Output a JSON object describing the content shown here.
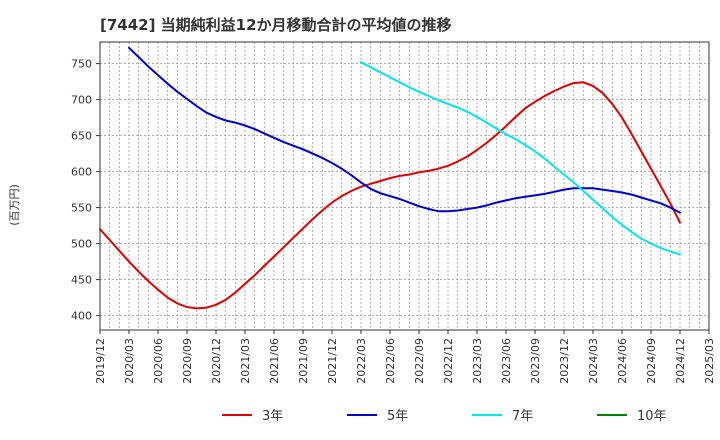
{
  "chart_data": {
    "type": "line",
    "title": "[7442]  当期純利益12か月移動合計の平均値の推移",
    "ylabel": "(百万円)",
    "xlabel": "",
    "ylim": [
      380,
      780
    ],
    "yticks": [
      400,
      450,
      500,
      550,
      600,
      650,
      700,
      750
    ],
    "xticks": [
      "2019/12",
      "2020/03",
      "2020/06",
      "2020/09",
      "2020/12",
      "2021/03",
      "2021/06",
      "2021/09",
      "2021/12",
      "2022/03",
      "2022/06",
      "2022/09",
      "2022/12",
      "2023/03",
      "2023/06",
      "2023/09",
      "2023/12",
      "2024/03",
      "2024/06",
      "2024/09",
      "2024/12",
      "2025/03"
    ],
    "grid": true,
    "legend_position": "bottom",
    "series": [
      {
        "name": "3年",
        "color": "#dd0000",
        "x": [
          "2019/12",
          "2020/01",
          "2020/02",
          "2020/03",
          "2020/04",
          "2020/05",
          "2020/06",
          "2020/07",
          "2020/08",
          "2020/09",
          "2020/10",
          "2020/11",
          "2020/12",
          "2021/01",
          "2021/02",
          "2021/03",
          "2021/04",
          "2021/05",
          "2021/06",
          "2021/07",
          "2021/08",
          "2021/09",
          "2021/10",
          "2021/11",
          "2021/12",
          "2022/01",
          "2022/02",
          "2022/03",
          "2022/04",
          "2022/05",
          "2022/06",
          "2022/07",
          "2022/08",
          "2022/09",
          "2022/10",
          "2022/11",
          "2022/12",
          "2023/01",
          "2023/02",
          "2023/03",
          "2023/04",
          "2023/05",
          "2023/06",
          "2023/07",
          "2023/08",
          "2023/09",
          "2023/10",
          "2023/11",
          "2023/12",
          "2024/01",
          "2024/02",
          "2024/03",
          "2024/04",
          "2024/05",
          "2024/06",
          "2024/07",
          "2024/08",
          "2024/09",
          "2024/10",
          "2024/11",
          "2024/12"
        ],
        "values": [
          520,
          505,
          490,
          475,
          461,
          448,
          436,
          425,
          417,
          412,
          410,
          411,
          415,
          422,
          432,
          444,
          456,
          469,
          482,
          495,
          508,
          521,
          534,
          546,
          557,
          566,
          573,
          579,
          583,
          587,
          591,
          594,
          596,
          599,
          601,
          604,
          608,
          614,
          621,
          630,
          640,
          651,
          663,
          676,
          688,
          697,
          705,
          712,
          718,
          723,
          724,
          719,
          709,
          694,
          675,
          652,
          628,
          604,
          580,
          556,
          529
        ]
      },
      {
        "name": "5年",
        "color": "#0000cc",
        "x": [
          "2020/03",
          "2020/04",
          "2020/05",
          "2020/06",
          "2020/07",
          "2020/08",
          "2020/09",
          "2020/10",
          "2020/11",
          "2020/12",
          "2021/01",
          "2021/02",
          "2021/03",
          "2021/04",
          "2021/05",
          "2021/06",
          "2021/07",
          "2021/08",
          "2021/09",
          "2021/10",
          "2021/11",
          "2021/12",
          "2022/01",
          "2022/02",
          "2022/03",
          "2022/04",
          "2022/05",
          "2022/06",
          "2022/07",
          "2022/08",
          "2022/09",
          "2022/10",
          "2022/11",
          "2022/12",
          "2023/01",
          "2023/02",
          "2023/03",
          "2023/04",
          "2023/05",
          "2023/06",
          "2023/07",
          "2023/08",
          "2023/09",
          "2023/10",
          "2023/11",
          "2023/12",
          "2024/01",
          "2024/02",
          "2024/03",
          "2024/04",
          "2024/05",
          "2024/06",
          "2024/07",
          "2024/08",
          "2024/09",
          "2024/10",
          "2024/11",
          "2024/12"
        ],
        "values": [
          772,
          759,
          746,
          734,
          722,
          711,
          701,
          691,
          682,
          676,
          671,
          668,
          664,
          659,
          653,
          647,
          641,
          636,
          631,
          625,
          619,
          612,
          604,
          595,
          585,
          576,
          570,
          566,
          562,
          557,
          552,
          548,
          545,
          545,
          546,
          548,
          550,
          553,
          557,
          560,
          563,
          565,
          567,
          569,
          572,
          575,
          577,
          577,
          577,
          575,
          573,
          571,
          568,
          564,
          560,
          556,
          550,
          543
        ]
      },
      {
        "name": "7年",
        "color": "#00e6e6",
        "x": [
          "2022/03",
          "2022/04",
          "2022/05",
          "2022/06",
          "2022/07",
          "2022/08",
          "2022/09",
          "2022/10",
          "2022/11",
          "2022/12",
          "2023/01",
          "2023/02",
          "2023/03",
          "2023/04",
          "2023/05",
          "2023/06",
          "2023/07",
          "2023/08",
          "2023/09",
          "2023/10",
          "2023/11",
          "2023/12",
          "2024/01",
          "2024/02",
          "2024/03",
          "2024/04",
          "2024/05",
          "2024/06",
          "2024/07",
          "2024/08",
          "2024/09",
          "2024/10",
          "2024/11",
          "2024/12"
        ],
        "values": [
          752,
          745,
          738,
          731,
          724,
          717,
          711,
          705,
          699,
          694,
          689,
          683,
          676,
          668,
          660,
          652,
          645,
          637,
          628,
          618,
          607,
          596,
          585,
          573,
          561,
          549,
          537,
          526,
          516,
          507,
          500,
          494,
          489,
          485
        ]
      },
      {
        "name": "10年",
        "color": "#008000",
        "x": [],
        "values": []
      }
    ]
  }
}
